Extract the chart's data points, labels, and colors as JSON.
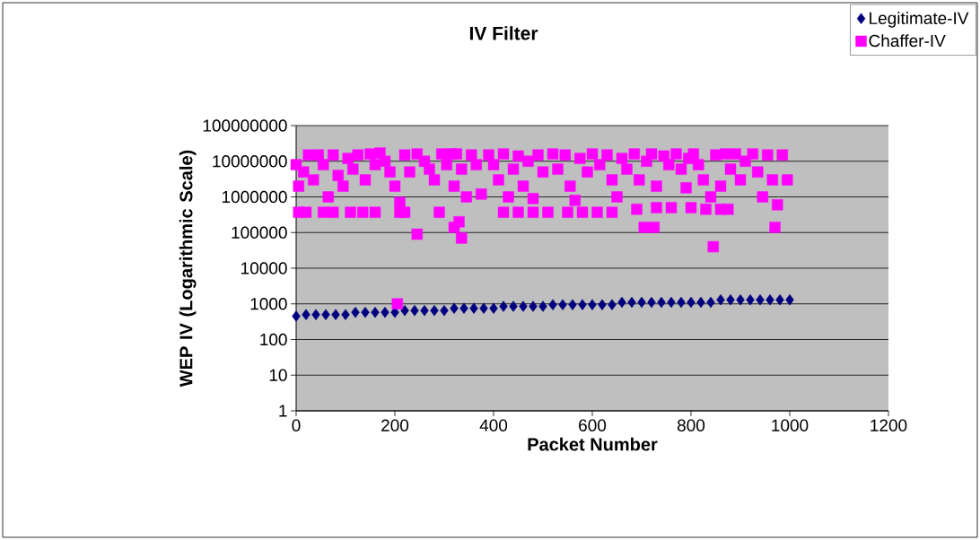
{
  "chart_data": {
    "type": "scatter",
    "title": "IV Filter",
    "xlabel": "Packet Number",
    "ylabel": "WEP IV (Logarithmic Scale)",
    "log": "y",
    "grid": "y",
    "legend": "top right",
    "xlim": [
      0,
      1200
    ],
    "xticks": [
      0,
      200,
      400,
      600,
      800,
      1000,
      1200
    ],
    "ylim": [
      1,
      100000000
    ],
    "yticks": [
      1,
      10,
      100,
      1000,
      10000,
      100000,
      1000000,
      10000000,
      100000000
    ],
    "series": [
      {
        "name": "Legitimate-IV",
        "color": "#000080",
        "marker": "diamond",
        "x": [
          0,
          20,
          40,
          60,
          80,
          100,
          120,
          140,
          160,
          180,
          200,
          220,
          240,
          260,
          280,
          300,
          320,
          340,
          360,
          380,
          400,
          420,
          440,
          460,
          480,
          500,
          520,
          540,
          560,
          580,
          600,
          620,
          640,
          660,
          680,
          700,
          720,
          740,
          760,
          780,
          800,
          820,
          840,
          860,
          880,
          900,
          920,
          940,
          960,
          980,
          1000
        ],
        "values": [
          450,
          500,
          500,
          500,
          500,
          500,
          580,
          580,
          580,
          580,
          580,
          650,
          650,
          650,
          650,
          650,
          750,
          750,
          750,
          750,
          750,
          850,
          850,
          850,
          850,
          850,
          950,
          950,
          950,
          950,
          950,
          950,
          950,
          1100,
          1100,
          1100,
          1100,
          1100,
          1100,
          1100,
          1100,
          1100,
          1100,
          1300,
          1300,
          1300,
          1300,
          1300,
          1300,
          1300,
          1300
        ]
      },
      {
        "name": "Chaffer-IV",
        "color": "#ff00ff",
        "marker": "square",
        "x": [
          5,
          20,
          55,
          75,
          110,
          135,
          160,
          210,
          220,
          290,
          420,
          450,
          480,
          510,
          550,
          580,
          610,
          640,
          690,
          730,
          760,
          800,
          830,
          860,
          875,
          0,
          5,
          15,
          25,
          35,
          45,
          55,
          65,
          75,
          85,
          95,
          105,
          115,
          125,
          140,
          150,
          160,
          170,
          180,
          190,
          200,
          210,
          220,
          230,
          245,
          260,
          270,
          280,
          295,
          305,
          315,
          320,
          325,
          335,
          345,
          355,
          365,
          375,
          390,
          400,
          410,
          420,
          430,
          440,
          450,
          460,
          470,
          490,
          500,
          520,
          530,
          545,
          555,
          565,
          575,
          590,
          600,
          615,
          630,
          640,
          650,
          660,
          670,
          685,
          695,
          710,
          720,
          730,
          745,
          755,
          770,
          780,
          795,
          805,
          815,
          825,
          840,
          850,
          860,
          870,
          880,
          890,
          900,
          910,
          925,
          935,
          945,
          955,
          965,
          975,
          985,
          995,
          205,
          245,
          320,
          330,
          335,
          480,
          705,
          725,
          790,
          845,
          970
        ],
        "values": [
          370000,
          370000,
          370000,
          370000,
          370000,
          370000,
          370000,
          370000,
          370000,
          370000,
          370000,
          370000,
          370000,
          370000,
          370000,
          370000,
          370000,
          370000,
          450000,
          500000,
          500000,
          500000,
          450000,
          450000,
          450000,
          8000000,
          2000000,
          5000000,
          15000000,
          3000000,
          15000000,
          8000000,
          1000000,
          15000000,
          4000000,
          2000000,
          12000000,
          6000000,
          15000000,
          3000000,
          16000000,
          8000000,
          17000000,
          10000000,
          5000000,
          2000000,
          700000,
          15000000,
          5000000,
          16000000,
          10000000,
          6000000,
          3000000,
          16000000,
          8000000,
          16000000,
          2000000,
          16000000,
          6000000,
          1000000,
          15000000,
          8000000,
          1200000,
          15000000,
          8000000,
          3000000,
          16000000,
          1000000,
          6000000,
          14000000,
          2000000,
          10000000,
          15000000,
          5000000,
          16000000,
          6000000,
          15000000,
          2000000,
          800000,
          12000000,
          5000000,
          16000000,
          8000000,
          15000000,
          3000000,
          1000000,
          12000000,
          6000000,
          16000000,
          3000000,
          10000000,
          16000000,
          2000000,
          14000000,
          8000000,
          16000000,
          6000000,
          12000000,
          16000000,
          8000000,
          3000000,
          1000000,
          15000000,
          2000000,
          16000000,
          6000000,
          16000000,
          3000000,
          10000000,
          16000000,
          5000000,
          1000000,
          15000000,
          3000000,
          600000,
          15000000,
          3000000,
          1000,
          90000,
          140000,
          200000,
          70000,
          900000,
          140000,
          140000,
          1800000,
          40000,
          140000
        ]
      }
    ]
  }
}
